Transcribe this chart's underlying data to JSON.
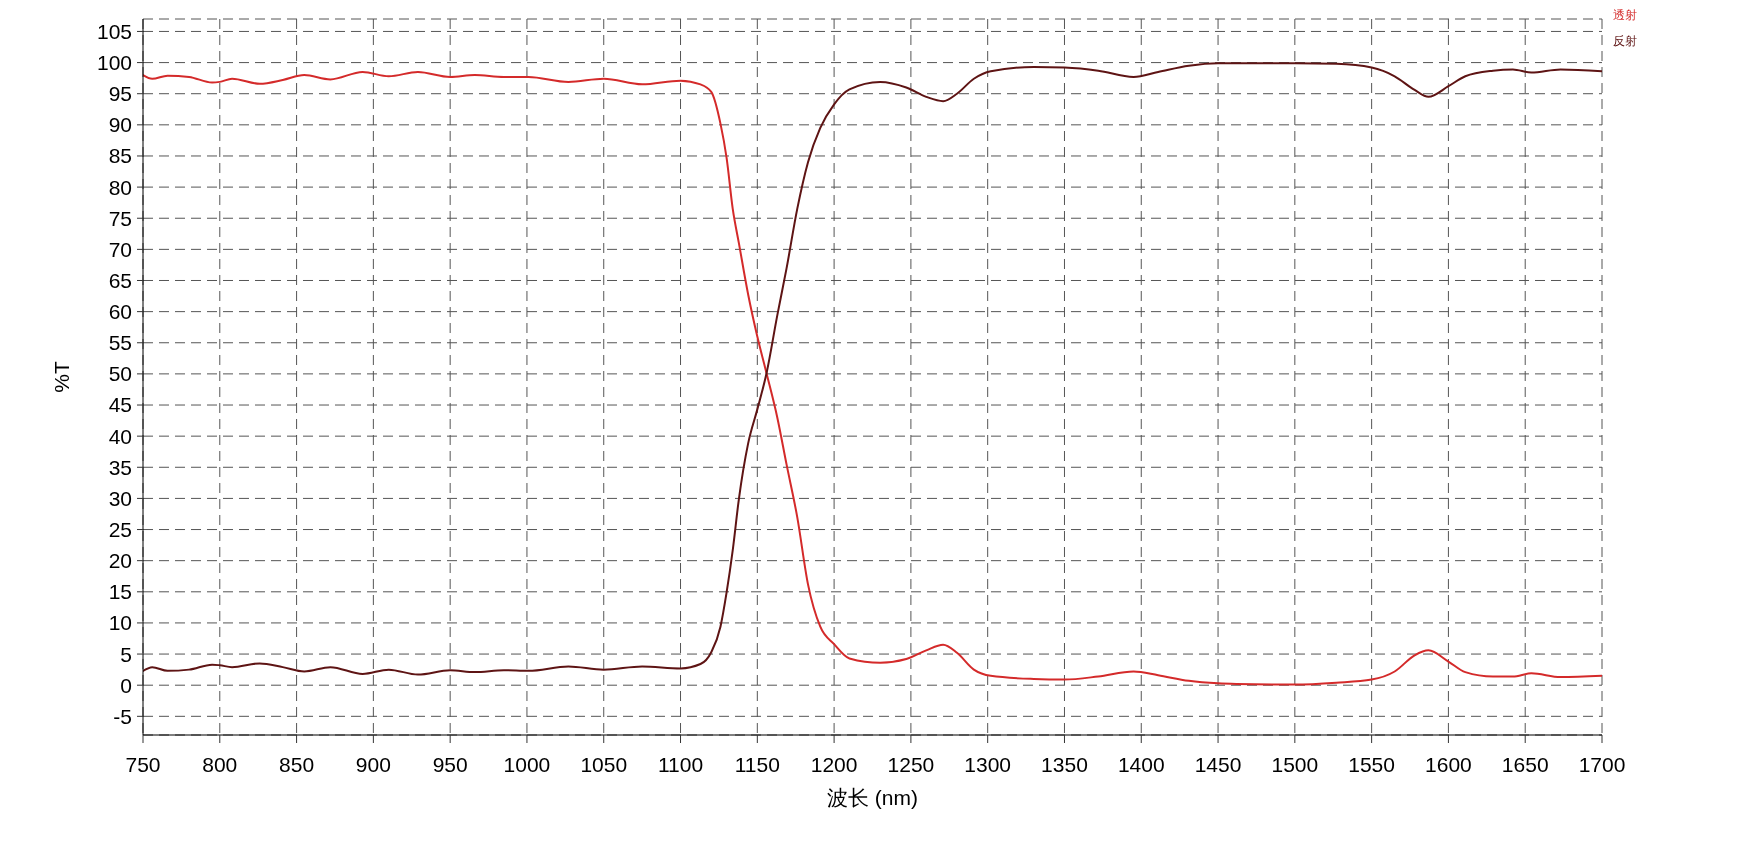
{
  "chart_data": {
    "type": "line",
    "xlabel": "波长 (nm)",
    "ylabel": "%T",
    "x": [
      750,
      756,
      766,
      780,
      795,
      800,
      808,
      826,
      841,
      855,
      872,
      893,
      910,
      929,
      950,
      966,
      985,
      1001,
      1027,
      1050,
      1075,
      1100,
      1113,
      1120,
      1126,
      1130,
      1134,
      1138,
      1144,
      1150,
      1156,
      1163,
      1169,
      1176,
      1183,
      1191,
      1200,
      1210,
      1230,
      1247,
      1260,
      1271,
      1280,
      1291,
      1302,
      1330,
      1350,
      1372,
      1395,
      1411,
      1431,
      1450,
      1462,
      1500,
      1527,
      1550,
      1565,
      1578,
      1587,
      1600,
      1611,
      1629,
      1642,
      1654,
      1673,
      1700
    ],
    "series": [
      {
        "name": "透射",
        "color": "#d42a2a",
        "values": [
          98.0,
          97.4,
          97.9,
          97.7,
          96.8,
          96.9,
          97.4,
          96.6,
          97.2,
          98.0,
          97.3,
          98.5,
          97.8,
          98.5,
          97.7,
          98.0,
          97.7,
          97.7,
          96.9,
          97.4,
          96.5,
          97.1,
          96.5,
          95.3,
          90.2,
          84.7,
          76.5,
          71,
          62.8,
          56,
          50.1,
          43,
          35.5,
          27,
          16.2,
          9.4,
          6.6,
          4.3,
          3.6,
          4.2,
          5.6,
          6.5,
          5.2,
          2.5,
          1.5,
          1.0,
          0.9,
          1.4,
          2.2,
          1.6,
          0.7,
          0.3,
          0.2,
          0.1,
          0.4,
          0.9,
          2.2,
          4.8,
          5.6,
          3.8,
          2.1,
          1.4,
          1.4,
          1.9,
          1.3,
          1.5
        ]
      },
      {
        "name": "反射",
        "color": "#5e1414",
        "values": [
          2.3,
          2.9,
          2.3,
          2.5,
          3.3,
          3.2,
          2.9,
          3.5,
          2.9,
          2.2,
          2.9,
          1.8,
          2.5,
          1.7,
          2.4,
          2.1,
          2.4,
          2.3,
          3.0,
          2.5,
          3.0,
          2.7,
          3.4,
          5.3,
          9.4,
          14.9,
          21.7,
          29.9,
          38.8,
          44.3,
          50.1,
          59.4,
          66.9,
          76.5,
          84,
          89.5,
          93.3,
          95.7,
          96.9,
          96.0,
          94.5,
          93.8,
          95.0,
          97.4,
          98.6,
          99.3,
          99.2,
          98.7,
          97.7,
          98.5,
          99.5,
          99.9,
          99.9,
          99.9,
          99.8,
          99.2,
          97.8,
          95.6,
          94.5,
          96.2,
          97.8,
          98.7,
          98.9,
          98.4,
          98.9,
          98.6
        ]
      }
    ],
    "xlim": [
      750,
      1700
    ],
    "xticks": [
      750,
      800,
      850,
      900,
      950,
      1000,
      1050,
      1100,
      1150,
      1200,
      1250,
      1300,
      1350,
      1400,
      1450,
      1500,
      1550,
      1600,
      1650,
      1700
    ],
    "ylim": [
      -8,
      107
    ],
    "yticks": [
      -5,
      0,
      5,
      10,
      15,
      20,
      25,
      30,
      35,
      40,
      45,
      50,
      55,
      60,
      65,
      70,
      75,
      80,
      85,
      90,
      95,
      100,
      105
    ],
    "grid": true,
    "legend": "top right",
    "marker": "none",
    "line_style": "solid"
  }
}
